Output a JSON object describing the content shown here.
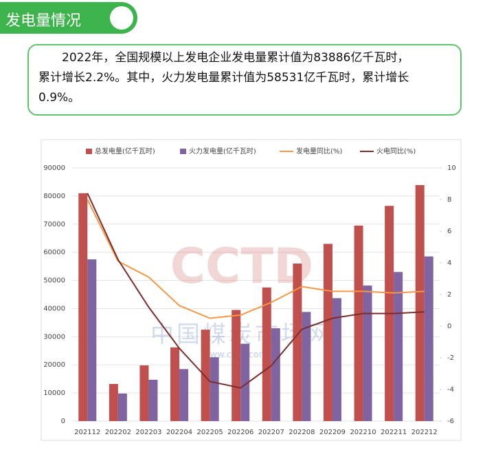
{
  "header": {
    "title": "发电量情况"
  },
  "summary": {
    "lines": [
      "2022年，全国规模以上发电企业发电量累计值为83886亿千瓦时，",
      "累计增长2.2%。其中，火力发电量累计值为58531亿千瓦时，累计增长",
      "0.9%。"
    ]
  },
  "chart_data": {
    "type": "bar",
    "categories": [
      "202112",
      "202202",
      "202203",
      "202204",
      "202205",
      "202206",
      "202207",
      "202208",
      "202209",
      "202210",
      "202211",
      "202212"
    ],
    "series": [
      {
        "name": "总发电量(亿千瓦时)",
        "type": "bar",
        "color": "#c0504d",
        "values": [
          81000,
          13200,
          19800,
          26200,
          32500,
          39500,
          47500,
          56000,
          63000,
          69500,
          76500,
          83886
        ]
      },
      {
        "name": "火力发电量(亿千瓦时)",
        "type": "bar",
        "color": "#8064a2",
        "values": [
          57500,
          9800,
          14700,
          18500,
          22700,
          27500,
          33000,
          38800,
          43700,
          48200,
          53000,
          58531
        ]
      },
      {
        "name": "发电量同比(%)",
        "type": "line",
        "axis": "y2",
        "color": "#f79646",
        "values": [
          8.0,
          4.1,
          3.1,
          1.3,
          0.5,
          0.7,
          1.5,
          2.5,
          2.2,
          2.2,
          2.1,
          2.2
        ]
      },
      {
        "name": "火电同比(%)",
        "type": "line",
        "axis": "y2",
        "color": "#7b2c2c",
        "values": [
          8.4,
          4.2,
          1.2,
          -1.4,
          -3.5,
          -3.9,
          -2.5,
          -0.2,
          0.5,
          0.8,
          0.8,
          0.9
        ]
      }
    ],
    "ylim": [
      0,
      90000
    ],
    "yticks": [
      0,
      10000,
      20000,
      30000,
      40000,
      50000,
      60000,
      70000,
      80000,
      90000
    ],
    "y2lim": [
      -6,
      10
    ],
    "y2ticks": [
      -6,
      -4,
      -2,
      0,
      2,
      4,
      6,
      8,
      10
    ],
    "grid": true,
    "legend": "top",
    "watermark": {
      "logo": "CCTD",
      "name": "中国煤炭市场网",
      "url": "www.cctd.com.cn"
    }
  }
}
